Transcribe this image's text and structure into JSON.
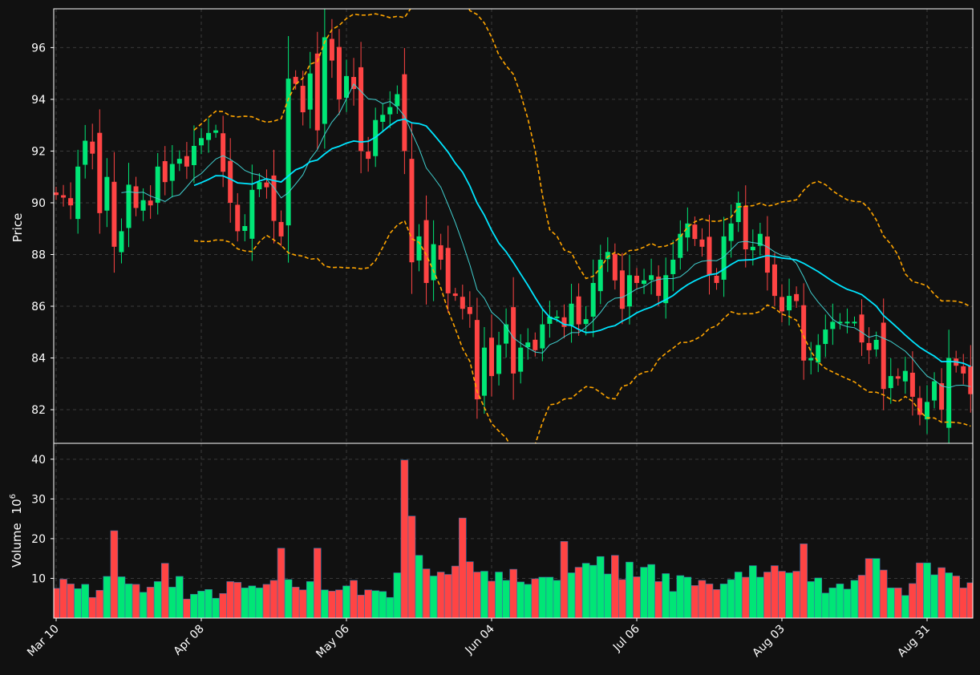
{
  "chart_data": [
    {
      "type": "candlestick",
      "ylabel": "Price",
      "ylim": [
        80.7,
        97.5
      ],
      "yticks": [
        82,
        84,
        86,
        88,
        90,
        92,
        94,
        96
      ],
      "xticks": [
        {
          "index": 0,
          "label": "Mar 10"
        },
        {
          "index": 20,
          "label": "Apr 08"
        },
        {
          "index": 40,
          "label": "May 06"
        },
        {
          "index": 60,
          "label": "Jun 04"
        },
        {
          "index": 80,
          "label": "Jul 06"
        },
        {
          "index": 100,
          "label": "Aug 03"
        },
        {
          "index": 120,
          "label": "Aug 31"
        }
      ],
      "grid": true,
      "colors": {
        "up": "#00e676",
        "down": "#ff4444",
        "ma_fast": "#40d0d0",
        "ma_slow": "#00e5ff",
        "bands": "#ffa500",
        "background": "#111111"
      },
      "overlays": [
        "moving average (fast)",
        "moving average (slow)",
        "upper band",
        "lower band"
      ],
      "close": [
        90.3,
        90.2,
        89.9,
        91.4,
        92.4,
        91.9,
        89.6,
        91.0,
        88.3,
        88.9,
        90.7,
        89.8,
        90.1,
        89.9,
        91.4,
        90.8,
        91.5,
        91.7,
        91.4,
        92.2,
        92.5,
        92.7,
        92.8,
        91.2,
        90.0,
        88.9,
        89.1,
        90.5,
        90.8,
        90.6,
        89.3,
        88.7,
        94.8,
        94.6,
        93.5,
        95.0,
        92.8,
        96.4,
        95.5,
        94.0,
        94.9,
        94.4,
        92.0,
        91.7,
        93.2,
        93.4,
        93.7,
        94.2,
        92.0,
        87.7,
        88.7,
        86.9,
        88.4,
        87.8,
        86.5,
        86.4,
        85.9,
        85.7,
        82.4,
        84.4,
        83.3,
        84.5,
        85.3,
        83.4,
        84.4,
        84.6,
        84.3,
        85.3,
        85.6,
        85.6,
        85.2,
        86.1,
        85.3,
        85.5,
        86.9,
        87.8,
        88.1,
        87.0,
        85.9,
        87.2,
        86.9,
        87.0,
        87.2,
        86.4,
        87.2,
        87.8,
        88.8,
        89.2,
        88.6,
        88.3,
        87.2,
        86.9,
        88.7,
        89.2,
        90.0,
        88.2,
        88.3,
        88.8,
        87.3,
        86.4,
        85.8,
        86.4,
        86.2,
        83.9,
        84.0,
        84.5,
        85.1,
        85.4,
        85.4,
        85.4,
        85.4,
        84.6,
        84.3,
        84.7,
        82.8,
        83.3,
        83.2,
        83.5,
        82.5,
        81.8,
        82.3,
        83.1,
        82.0,
        84.0,
        83.7,
        83.4,
        82.6
      ],
      "volume_units": "10^6"
    },
    {
      "type": "bar",
      "ylabel": "Volume",
      "ylabel_exponent": "6",
      "ylim": [
        0,
        40
      ],
      "yticks": [
        10,
        20,
        30,
        40
      ],
      "values": [
        7.5,
        9.8,
        8.6,
        7.4,
        8.5,
        5.2,
        7.0,
        10.5,
        22.0,
        10.4,
        8.6,
        8.5,
        6.5,
        7.8,
        9.2,
        13.8,
        7.8,
        10.5,
        4.8,
        6.0,
        6.8,
        7.2,
        5.0,
        6.2,
        9.2,
        9.0,
        7.6,
        8.1,
        7.6,
        8.5,
        9.5,
        17.6,
        9.7,
        7.8,
        7.1,
        9.2,
        17.6,
        7.1,
        6.8,
        7.1,
        8.1,
        9.5,
        5.8,
        7.1,
        6.9,
        6.7,
        5.2,
        11.4,
        39.8,
        25.7,
        15.8,
        12.4,
        10.6,
        11.6,
        11.0,
        13.1,
        25.2,
        14.2,
        11.6,
        11.8,
        9.3,
        11.6,
        9.5,
        12.3,
        9.1,
        8.5,
        9.9,
        10.3,
        10.3,
        9.5,
        19.3,
        11.4,
        12.8,
        13.8,
        13.3,
        15.5,
        11.1,
        15.8,
        9.7,
        14.1,
        10.4,
        12.8,
        13.5,
        9.2,
        11.2,
        6.7,
        10.7,
        10.3,
        8.2,
        9.5,
        8.6,
        7.2,
        8.6,
        9.7,
        11.6,
        10.3,
        13.2,
        10.3,
        11.6,
        13.2,
        11.8,
        11.4,
        11.8,
        18.7,
        9.2,
        10.1,
        6.3,
        7.6,
        8.6,
        7.3,
        9.5,
        10.8,
        15.0,
        15.0,
        12.1,
        7.6,
        7.6,
        5.7,
        8.7,
        13.9,
        13.9,
        10.9,
        12.7,
        11.4,
        10.6,
        7.6,
        8.9
      ]
    }
  ]
}
